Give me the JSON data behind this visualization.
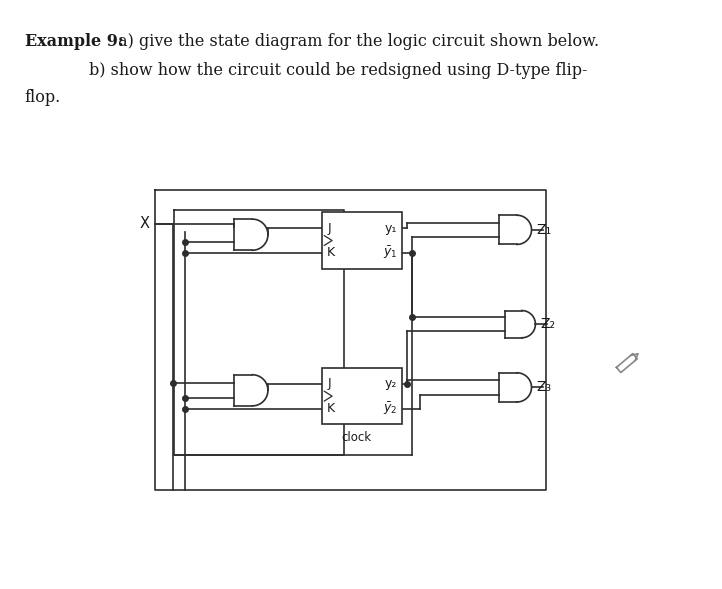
{
  "bg": "#ffffff",
  "lc": "#2d2d2d",
  "tc": "#1a1a1a",
  "fw": 7.22,
  "fh": 5.89,
  "dpi": 100,
  "title_bold": "Example 9:",
  "title_rest": " a) give the state diagram for the logic circuit shown below.",
  "line2": "b) show how the circuit could be redsigned using D-type flip-",
  "line3": "flop."
}
